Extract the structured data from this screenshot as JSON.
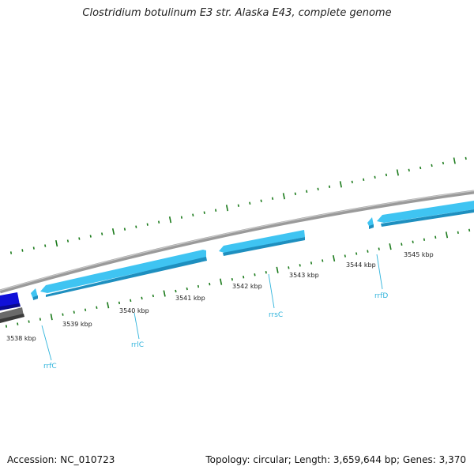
{
  "title": "Clostridium botulinum E3 str. Alaska E43, complete genome",
  "accession": "Accession: NC_010723",
  "summary": "Topology: circular; Length: 3,659,644 bp; Genes: 3,370",
  "colors": {
    "backbone": "#777777",
    "ticks": "#1a7a1a",
    "gene_fill": "#3fc4f2",
    "gene_dark": "#1e8fbf",
    "blue_feature": "#1010d8",
    "gray_feature": "#6a6a6a",
    "label": "#31b4dc"
  },
  "kbp_labels": [
    "3538 kbp",
    "3539 kbp",
    "3540 kbp",
    "3541 kbp",
    "3542 kbp",
    "3543 kbp",
    "3544 kbp",
    "3545 kbp"
  ],
  "gene_labels": [
    "rrfC",
    "rrlC",
    "rrsC",
    "rrfD"
  ]
}
